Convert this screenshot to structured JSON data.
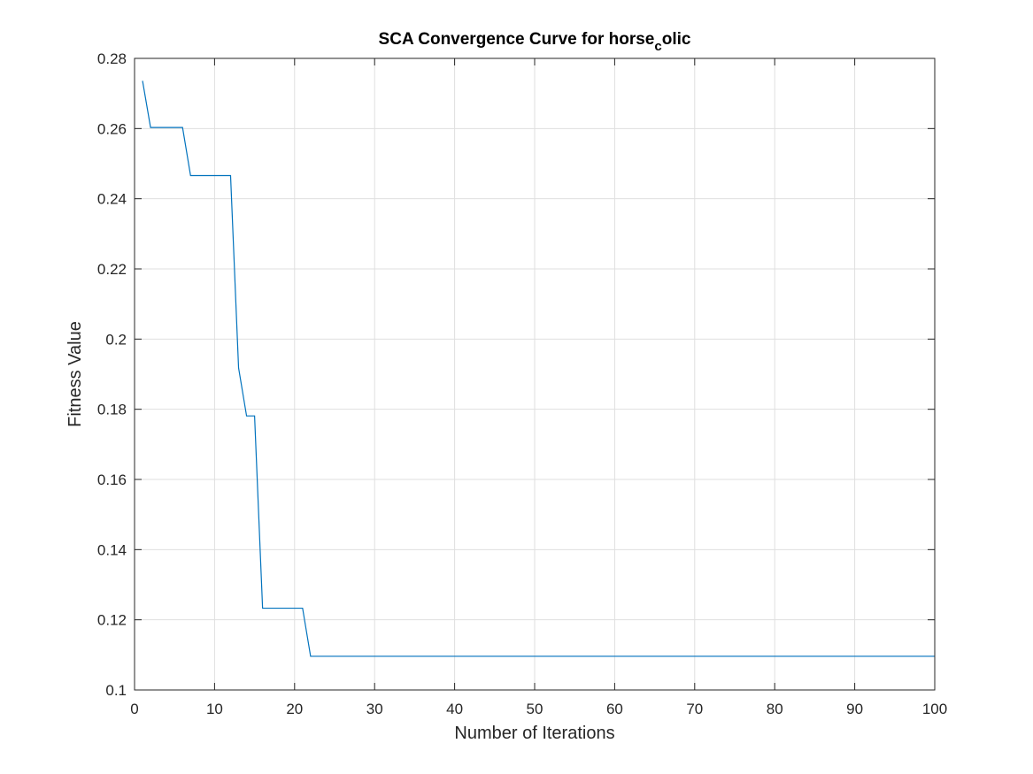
{
  "chart_data": {
    "type": "line",
    "title": {
      "main": "SCA Convergence Curve for horse",
      "subscript": "c",
      "tail": "olic"
    },
    "xlabel": "Number of Iterations",
    "ylabel": "Fitness Value",
    "xlim": [
      0,
      100
    ],
    "ylim": [
      0.1,
      0.28
    ],
    "xticks": [
      0,
      10,
      20,
      30,
      40,
      50,
      60,
      70,
      80,
      90,
      100
    ],
    "xtick_labels": [
      "0",
      "10",
      "20",
      "30",
      "40",
      "50",
      "60",
      "70",
      "80",
      "90",
      "100"
    ],
    "yticks": [
      0.1,
      0.12,
      0.14,
      0.16,
      0.18,
      0.2,
      0.22,
      0.24,
      0.26,
      0.28
    ],
    "ytick_labels": [
      "0.1",
      "0.12",
      "0.14",
      "0.16",
      "0.18",
      "0.2",
      "0.22",
      "0.24",
      "0.26",
      "0.28"
    ],
    "grid": true,
    "series": [
      {
        "color": "#0072bd",
        "x": [
          1,
          2,
          3,
          4,
          5,
          6,
          7,
          8,
          9,
          10,
          11,
          12,
          13,
          14,
          15,
          16,
          17,
          18,
          19,
          20,
          21,
          22,
          23,
          24,
          25,
          26,
          27,
          28,
          29,
          30,
          31,
          32,
          33,
          34,
          35,
          36,
          37,
          38,
          39,
          40,
          41,
          42,
          43,
          44,
          45,
          46,
          47,
          48,
          49,
          50,
          51,
          52,
          53,
          54,
          55,
          56,
          57,
          58,
          59,
          60,
          61,
          62,
          63,
          64,
          65,
          66,
          67,
          68,
          69,
          70,
          71,
          72,
          73,
          74,
          75,
          76,
          77,
          78,
          79,
          80,
          81,
          82,
          83,
          84,
          85,
          86,
          87,
          88,
          89,
          90,
          91,
          92,
          93,
          94,
          95,
          96,
          97,
          98,
          99,
          100
        ],
        "y": [
          0.2736,
          0.2603,
          0.2603,
          0.2603,
          0.2603,
          0.2603,
          0.2466,
          0.2466,
          0.2466,
          0.2466,
          0.2466,
          0.2466,
          0.1918,
          0.1781,
          0.1781,
          0.1233,
          0.1233,
          0.1233,
          0.1233,
          0.1233,
          0.1233,
          0.1096,
          0.1096,
          0.1096,
          0.1096,
          0.1096,
          0.1096,
          0.1096,
          0.1096,
          0.1096,
          0.1096,
          0.1096,
          0.1096,
          0.1096,
          0.1096,
          0.1096,
          0.1096,
          0.1096,
          0.1096,
          0.1096,
          0.1096,
          0.1096,
          0.1096,
          0.1096,
          0.1096,
          0.1096,
          0.1096,
          0.1096,
          0.1096,
          0.1096,
          0.1096,
          0.1096,
          0.1096,
          0.1096,
          0.1096,
          0.1096,
          0.1096,
          0.1096,
          0.1096,
          0.1096,
          0.1096,
          0.1096,
          0.1096,
          0.1096,
          0.1096,
          0.1096,
          0.1096,
          0.1096,
          0.1096,
          0.1096,
          0.1096,
          0.1096,
          0.1096,
          0.1096,
          0.1096,
          0.1096,
          0.1096,
          0.1096,
          0.1096,
          0.1096,
          0.1096,
          0.1096,
          0.1096,
          0.1096,
          0.1096,
          0.1096,
          0.1096,
          0.1096,
          0.1096,
          0.1096,
          0.1096,
          0.1096,
          0.1096,
          0.1096,
          0.1096,
          0.1096,
          0.1096,
          0.1096,
          0.1096,
          0.1096
        ]
      }
    ]
  }
}
